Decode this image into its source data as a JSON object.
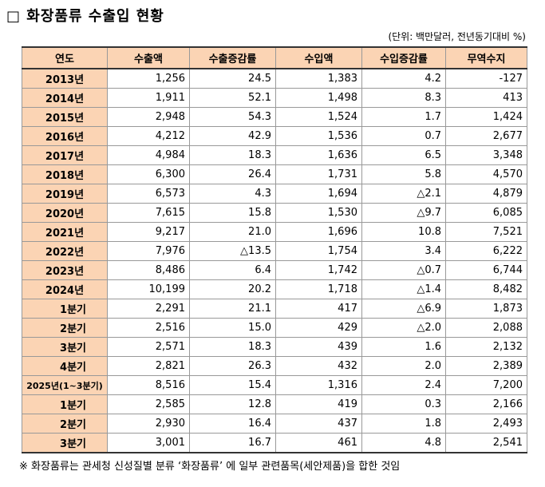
{
  "title": "□ 화장품류 수출입 현황",
  "unit": "(단위: 백만달러, 전년동기대비 %)",
  "table": {
    "header": [
      "연도",
      "수출액",
      "수출증감률",
      "수입액",
      "수입증감률",
      "무역수지"
    ],
    "rows": [
      [
        "2013년",
        "1,256",
        "24.5",
        "1,383",
        "4.2",
        "-127"
      ],
      [
        "2014년",
        "1,911",
        "52.1",
        "1,498",
        "8.3",
        "413"
      ],
      [
        "2015년",
        "2,948",
        "54.3",
        "1,524",
        "1.7",
        "1,424"
      ],
      [
        "2016년",
        "4,212",
        "42.9",
        "1,536",
        "0.7",
        "2,677"
      ],
      [
        "2017년",
        "4,984",
        "18.3",
        "1,636",
        "6.5",
        "3,348"
      ],
      [
        "2018년",
        "6,300",
        "26.4",
        "1,731",
        "5.8",
        "4,570"
      ],
      [
        "2019년",
        "6,573",
        "4.3",
        "1,694",
        "△2.1",
        "4,879"
      ],
      [
        "2020년",
        "7,615",
        "15.8",
        "1,530",
        "△9.7",
        "6,085"
      ],
      [
        "2021년",
        "9,217",
        "21.0",
        "1,696",
        "10.8",
        "7,521"
      ],
      [
        "2022년",
        "7,976",
        "△13.5",
        "1,754",
        "3.4",
        "6,222"
      ],
      [
        "2023년",
        "8,486",
        "6.4",
        "1,742",
        "△0.7",
        "6,744"
      ],
      [
        "2024년",
        "10,199",
        "20.2",
        "1,718",
        "△1.4",
        "8,482"
      ],
      [
        "1분기",
        "2,291",
        "21.1",
        "417",
        "△6.9",
        "1,873"
      ],
      [
        "2분기",
        "2,516",
        "15.0",
        "429",
        "△2.0",
        "2,088"
      ],
      [
        "3분기",
        "2,571",
        "18.3",
        "439",
        "1.6",
        "2,132"
      ],
      [
        "4분기",
        "2,821",
        "26.3",
        "432",
        "2.0",
        "2,389"
      ],
      [
        "2025년(1~3분기)",
        "8,516",
        "15.4",
        "1,316",
        "2.4",
        "7,200"
      ],
      [
        "1분기",
        "2,585",
        "12.8",
        "419",
        "0.3",
        "2,166"
      ],
      [
        "2분기",
        "2,930",
        "16.4",
        "437",
        "1.8",
        "2,493"
      ],
      [
        "3분기",
        "3,001",
        "16.7",
        "461",
        "4.8",
        "2,541"
      ]
    ]
  },
  "footnote": "※ 화장품류는 관세청 신성질별 분류 ‘화장품류’ 에 일부 관련품목(세안제품)을 합한 것임"
}
